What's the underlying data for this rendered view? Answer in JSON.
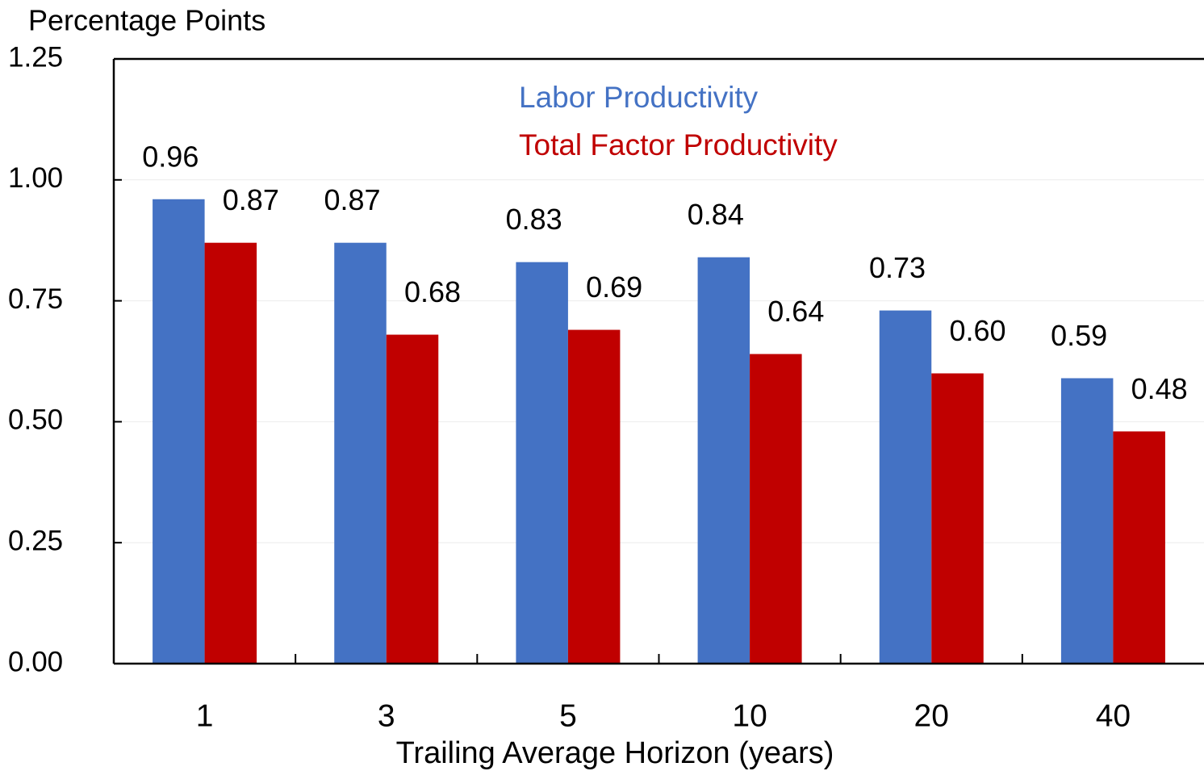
{
  "chart_data": {
    "type": "bar",
    "y_axis_label": "Percentage Points",
    "x_axis_label": "Trailing Average Horizon (years)",
    "categories": [
      "1",
      "3",
      "5",
      "10",
      "20",
      "40"
    ],
    "series": [
      {
        "name": "Labor Productivity",
        "color": "#4472c4",
        "values": [
          0.96,
          0.87,
          0.83,
          0.84,
          0.73,
          0.59
        ],
        "value_labels": [
          "0.96",
          "0.87",
          "0.83",
          "0.84",
          "0.73",
          "0.59"
        ]
      },
      {
        "name": "Total Factor Productivity",
        "color": "#c00000",
        "values": [
          0.87,
          0.68,
          0.69,
          0.64,
          0.6,
          0.48
        ],
        "value_labels": [
          "0.87",
          "0.68",
          "0.69",
          "0.64",
          "0.60",
          "0.48"
        ]
      }
    ],
    "ylim": [
      0,
      1.25
    ],
    "yticks": [
      {
        "value": 0,
        "label": "0.00"
      },
      {
        "value": 0.25,
        "label": "0.25"
      },
      {
        "value": 0.5,
        "label": "0.50"
      },
      {
        "value": 0.75,
        "label": "0.75"
      },
      {
        "value": 1,
        "label": "1.00"
      },
      {
        "value": 1.25,
        "label": "1.25"
      }
    ],
    "grid": true,
    "legend_position": "top"
  }
}
